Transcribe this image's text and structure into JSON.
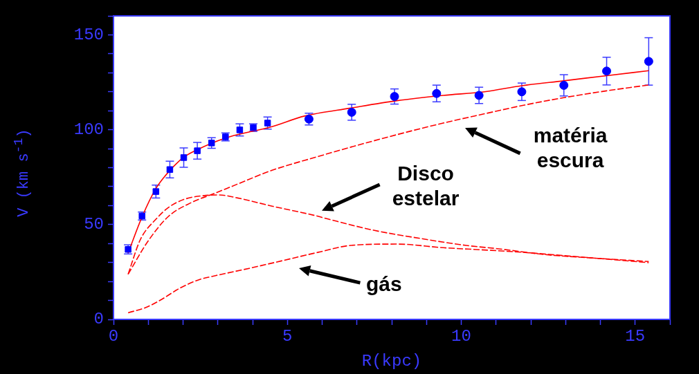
{
  "chart_data": {
    "type": "line",
    "xlabel": "R(kpc)",
    "ylabel": "V (km s$^{-1}$)",
    "xlim": [
      0,
      16
    ],
    "ylim": [
      0,
      160
    ],
    "xticks": [
      0,
      {
        "value": 1,
        "label": null
      },
      {
        "value": 2,
        "label": null
      },
      {
        "value": 3,
        "label": null
      },
      {
        "value": 4,
        "label": null
      },
      5,
      {
        "value": 6,
        "label": null
      },
      {
        "value": 7,
        "label": null
      },
      {
        "value": 8,
        "label": null
      },
      {
        "value": 9,
        "label": null
      },
      10,
      {
        "value": 11,
        "label": null
      },
      {
        "value": 12,
        "label": null
      },
      {
        "value": 13,
        "label": null
      },
      {
        "value": 14,
        "label": null
      },
      15,
      {
        "value": 16,
        "label": null
      }
    ],
    "yticks": [
      0,
      {
        "value": 10,
        "label": null
      },
      {
        "value": 20,
        "label": null
      },
      {
        "value": 30,
        "label": null
      },
      {
        "value": 40,
        "label": null
      },
      50,
      {
        "value": 60,
        "label": null
      },
      {
        "value": 70,
        "label": null
      },
      {
        "value": 80,
        "label": null
      },
      {
        "value": 90,
        "label": null
      },
      100,
      {
        "value": 110,
        "label": null
      },
      {
        "value": 120,
        "label": null
      },
      {
        "value": 130,
        "label": null
      },
      {
        "value": 140,
        "label": null
      },
      150,
      {
        "value": 160,
        "label": null
      }
    ],
    "grid": false,
    "legend": false,
    "series": [
      {
        "type": "scatter",
        "marker": "square",
        "color": "#0000ff",
        "x": [
          0.42,
          0.82,
          1.22,
          1.62,
          2.02,
          2.41,
          2.82,
          3.22,
          3.63,
          4.02,
          4.43
        ],
        "values": [
          36.9,
          54.5,
          67.4,
          79,
          85.3,
          88.9,
          93,
          96.2,
          99.9,
          101.1,
          103.5
        ],
        "errors": [
          2.4,
          2.1,
          3.4,
          4.4,
          5.1,
          4.4,
          2.8,
          2.1,
          3.2,
          2,
          3.2
        ]
      },
      {
        "type": "scatter",
        "marker": "circle",
        "color": "#0000ff",
        "x": [
          5.62,
          6.85,
          8.08,
          9.29,
          10.51,
          11.74,
          12.95,
          14.18,
          15.39
        ],
        "values": [
          105.6,
          109.2,
          117.5,
          119.1,
          118.1,
          120,
          123.4,
          130.9,
          136
        ],
        "errors": [
          3.1,
          4.2,
          4,
          4.4,
          4.3,
          4.6,
          5.6,
          7.3,
          12.5
        ]
      },
      {
        "type": "line",
        "line_style": "solid",
        "marker": "none",
        "color": "#ff0000",
        "x": [
          0.42,
          0.82,
          1.22,
          1.62,
          2.02,
          2.41,
          3.22,
          4.02,
          4.5,
          5.49,
          6.82,
          8.15,
          9.48,
          10.67,
          11.74,
          12.95,
          14.18,
          15.39
        ],
        "values": [
          35,
          54,
          69,
          78.5,
          85.5,
          89.5,
          95.6,
          99.3,
          101.3,
          107.2,
          111.4,
          115.3,
          118.1,
          120,
          123.2,
          125.8,
          128.5,
          131.1
        ]
      },
      {
        "type": "line",
        "line_style": "dashed",
        "marker": "none",
        "color": "#ff0000",
        "x": [
          0.42,
          0.98,
          1.58,
          2.24,
          2.9,
          3.56,
          4.56,
          5.89,
          6.82,
          8.15,
          9.48,
          10.67,
          11.74,
          12.95,
          14.18,
          15.39
        ],
        "values": [
          23.8,
          40.9,
          54.3,
          61.6,
          66.4,
          71.3,
          78.6,
          85.9,
          90.8,
          97.4,
          103.5,
          108.4,
          112.7,
          116.9,
          120.5,
          123.6
        ]
      },
      {
        "type": "line",
        "line_style": "dashed",
        "marker": "none",
        "color": "#ff0000",
        "x": [
          0.42,
          0.77,
          1.23,
          1.58,
          2.05,
          2.58,
          3.04,
          3.57,
          4.56,
          5.76,
          6.15,
          7.48,
          8.81,
          10.14,
          11.08,
          12.4,
          13.75,
          15.39
        ],
        "values": [
          23.8,
          42,
          53,
          59,
          63.4,
          65.2,
          65.6,
          64,
          59.7,
          54.9,
          53,
          47,
          42.7,
          39,
          37.2,
          34.2,
          32.4,
          30.5
        ]
      },
      {
        "type": "line",
        "line_style": "dashed",
        "marker": "none",
        "color": "#ff0000",
        "x": [
          0.42,
          0.92,
          1.38,
          1.91,
          2.44,
          2.97,
          3.9,
          4.89,
          5.89,
          6.82,
          8.15,
          9.48,
          10.67,
          11.74,
          12.95,
          14.18,
          15.39
        ],
        "values": [
          3.5,
          6.2,
          10.5,
          16.5,
          20.8,
          23.2,
          26.9,
          31.1,
          35.4,
          39,
          39.7,
          37.8,
          36.6,
          35.4,
          33.6,
          31.8,
          29.9
        ]
      }
    ],
    "annotations": [
      "matéria escura",
      "Disco estelar",
      "gás"
    ]
  }
}
